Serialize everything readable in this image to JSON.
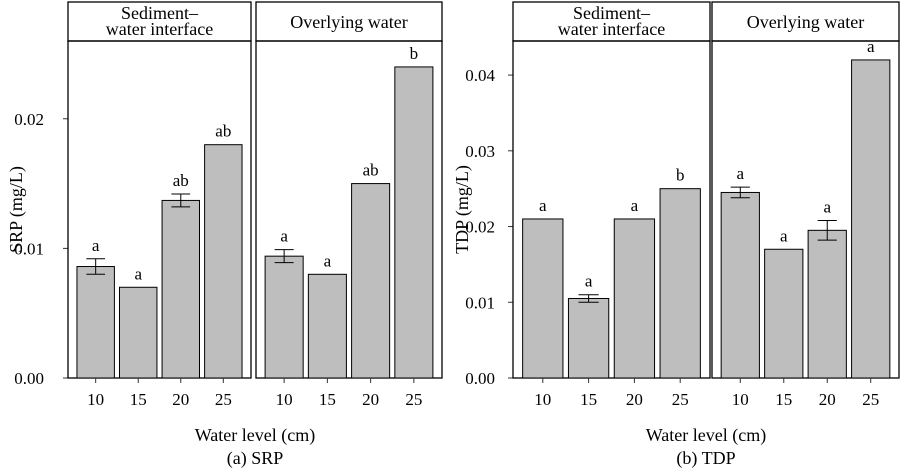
{
  "chart_data": [
    {
      "type": "bar",
      "caption": "(a) SRP",
      "ylabel": "SRP (mg/L)",
      "xlabel": "Water level (cm)",
      "ylim": [
        0,
        0.026
      ],
      "yticks": [
        "0.00",
        "0.01",
        "0.02"
      ],
      "ytick_values": [
        0,
        0.01,
        0.02
      ],
      "categories": [
        "10",
        "15",
        "20",
        "25"
      ],
      "panels": [
        {
          "title": [
            "Sediment–",
            "water interface"
          ],
          "values": [
            0.0086,
            0.007,
            0.0137,
            0.018
          ],
          "errors": [
            0.0006,
            0,
            0.0005,
            0
          ],
          "letters": [
            "a",
            "a",
            "ab",
            "ab"
          ]
        },
        {
          "title": [
            "Overlying water"
          ],
          "values": [
            0.0094,
            0.008,
            0.015,
            0.024
          ],
          "errors": [
            0.0005,
            0,
            0,
            0
          ],
          "letters": [
            "a",
            "a",
            "ab",
            "b"
          ]
        }
      ],
      "bar_color": "#bebebe"
    },
    {
      "type": "bar",
      "caption": "(b) TDP",
      "ylabel": "TDP (mg/L)",
      "xlabel": "Water level (cm)",
      "ylim": [
        0,
        0.0445
      ],
      "yticks": [
        "0.00",
        "0.01",
        "0.02",
        "0.03",
        "0.04"
      ],
      "ytick_values": [
        0,
        0.01,
        0.02,
        0.03,
        0.04
      ],
      "categories": [
        "10",
        "15",
        "20",
        "25"
      ],
      "panels": [
        {
          "title": [
            "Sediment–",
            "water interface"
          ],
          "values": [
            0.021,
            0.0105,
            0.021,
            0.025
          ],
          "errors": [
            0,
            0.0005,
            0,
            0
          ],
          "letters": [
            "a",
            "a",
            "a",
            "b"
          ]
        },
        {
          "title": [
            "Overlying water"
          ],
          "values": [
            0.0245,
            0.017,
            0.0195,
            0.042
          ],
          "errors": [
            0.0007,
            0,
            0.0013,
            0
          ],
          "letters": [
            "a",
            "a",
            "a",
            "a"
          ]
        }
      ],
      "bar_color": "#bebebe"
    }
  ]
}
